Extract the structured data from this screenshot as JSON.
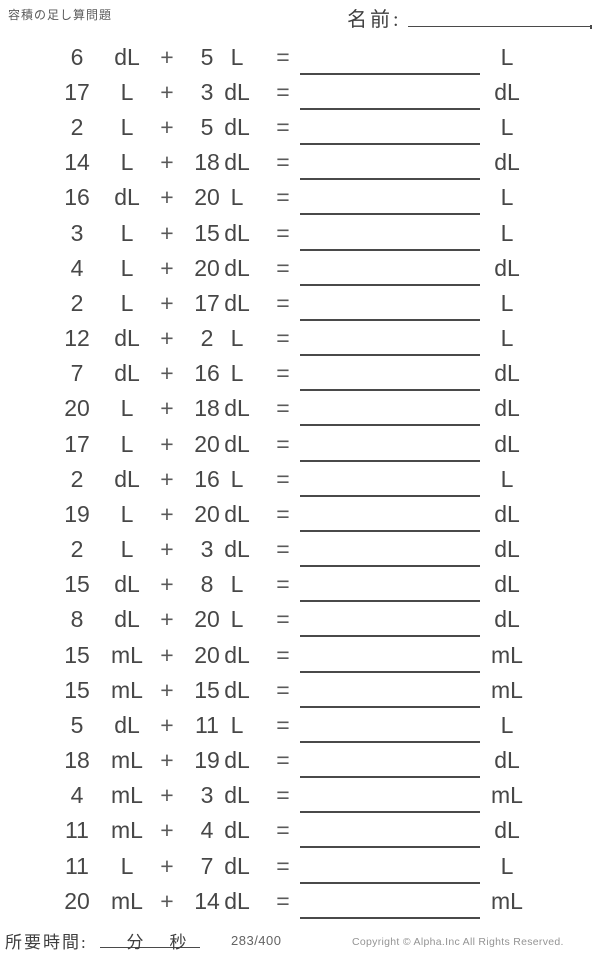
{
  "header": {
    "title": "容積の足し算問題",
    "name_label": "名前:"
  },
  "symbols": {
    "plus": "+",
    "equals": "="
  },
  "problems": [
    {
      "a": "6",
      "ua": "dL",
      "b": "5",
      "ub": "L",
      "unit": "L"
    },
    {
      "a": "17",
      "ua": "L",
      "b": "3",
      "ub": "dL",
      "unit": "dL"
    },
    {
      "a": "2",
      "ua": "L",
      "b": "5",
      "ub": "dL",
      "unit": "L"
    },
    {
      "a": "14",
      "ua": "L",
      "b": "18",
      "ub": "dL",
      "unit": "dL"
    },
    {
      "a": "16",
      "ua": "dL",
      "b": "20",
      "ub": "L",
      "unit": "L"
    },
    {
      "a": "3",
      "ua": "L",
      "b": "15",
      "ub": "dL",
      "unit": "L"
    },
    {
      "a": "4",
      "ua": "L",
      "b": "20",
      "ub": "dL",
      "unit": "dL"
    },
    {
      "a": "2",
      "ua": "L",
      "b": "17",
      "ub": "dL",
      "unit": "L"
    },
    {
      "a": "12",
      "ua": "dL",
      "b": "2",
      "ub": "L",
      "unit": "L"
    },
    {
      "a": "7",
      "ua": "dL",
      "b": "16",
      "ub": "L",
      "unit": "dL"
    },
    {
      "a": "20",
      "ua": "L",
      "b": "18",
      "ub": "dL",
      "unit": "dL"
    },
    {
      "a": "17",
      "ua": "L",
      "b": "20",
      "ub": "dL",
      "unit": "dL"
    },
    {
      "a": "2",
      "ua": "dL",
      "b": "16",
      "ub": "L",
      "unit": "L"
    },
    {
      "a": "19",
      "ua": "L",
      "b": "20",
      "ub": "dL",
      "unit": "dL"
    },
    {
      "a": "2",
      "ua": "L",
      "b": "3",
      "ub": "dL",
      "unit": "dL"
    },
    {
      "a": "15",
      "ua": "dL",
      "b": "8",
      "ub": "L",
      "unit": "dL"
    },
    {
      "a": "8",
      "ua": "dL",
      "b": "20",
      "ub": "L",
      "unit": "dL"
    },
    {
      "a": "15",
      "ua": "mL",
      "b": "20",
      "ub": "dL",
      "unit": "mL"
    },
    {
      "a": "15",
      "ua": "mL",
      "b": "15",
      "ub": "dL",
      "unit": "mL"
    },
    {
      "a": "5",
      "ua": "dL",
      "b": "11",
      "ub": "L",
      "unit": "L"
    },
    {
      "a": "18",
      "ua": "mL",
      "b": "19",
      "ub": "dL",
      "unit": "dL"
    },
    {
      "a": "4",
      "ua": "mL",
      "b": "3",
      "ub": "dL",
      "unit": "mL"
    },
    {
      "a": "11",
      "ua": "mL",
      "b": "4",
      "ub": "dL",
      "unit": "dL"
    },
    {
      "a": "11",
      "ua": "L",
      "b": "7",
      "ub": "dL",
      "unit": "L"
    },
    {
      "a": "20",
      "ua": "mL",
      "b": "14",
      "ub": "dL",
      "unit": "mL"
    }
  ],
  "footer": {
    "time_label": "所要時間:",
    "minutes_label": "分",
    "seconds_label": "秒",
    "page_number": "283/400",
    "copyright": "Copyright © Alpha.Inc All Rights Reserved."
  },
  "colors": {
    "text": "#474747",
    "line": "#4a4a4a",
    "muted": "#949494"
  }
}
